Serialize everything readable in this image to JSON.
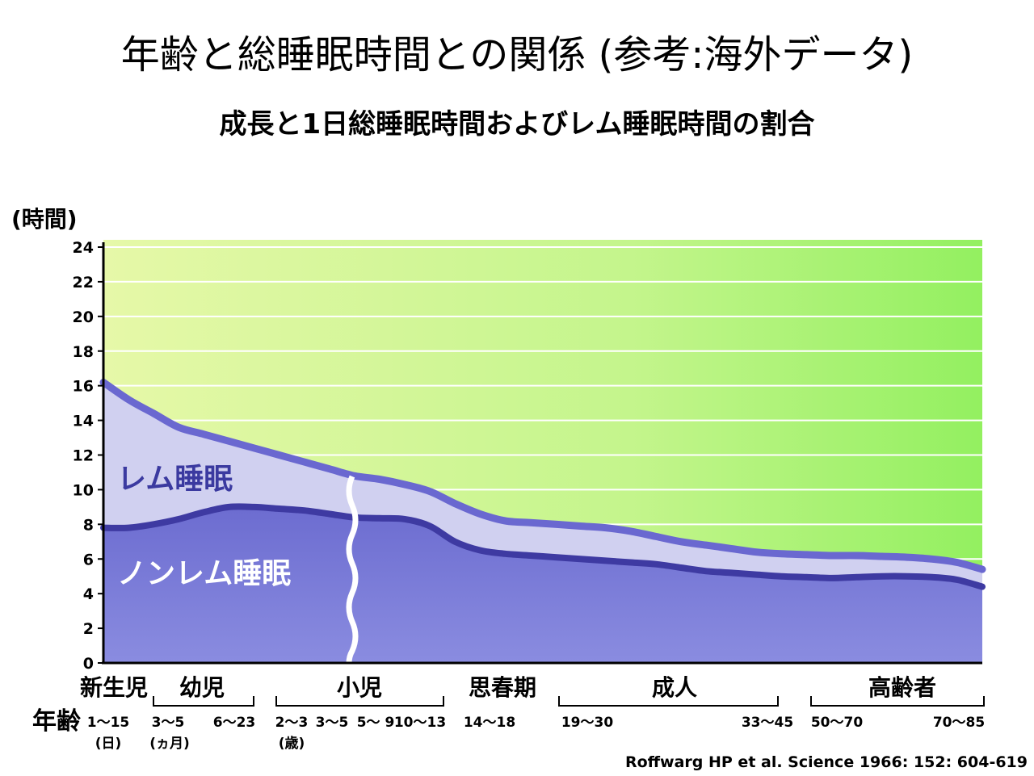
{
  "title": "年齢と総睡眠時間との関係 (参考:海外データ)",
  "subtitle": "成長と1日総睡眠時間およびレム睡眠時間の割合",
  "source": "Roffwarg HP et al. Science 1966: 152: 604-619",
  "colors": {
    "background_light": "#e6f8a8",
    "background_dark": "#93f060",
    "rem_area": "#d0d0f0",
    "rem_line": "#6a68d0",
    "nrem_area": "#7f80d8",
    "nrem_line": "#3e3aa2"
  },
  "chart_data": {
    "type": "area",
    "title": "成長と1日総睡眠時間およびレム睡眠時間の割合",
    "ylabel": "(時間)",
    "xlabel": "年齢",
    "ylim": [
      0,
      24
    ],
    "yticks": [
      0,
      2,
      4,
      6,
      8,
      10,
      12,
      14,
      16,
      18,
      20,
      22,
      24
    ],
    "grid": true,
    "stages": [
      "新生児",
      "幼児",
      "小児",
      "思春期",
      "成人",
      "高齢者"
    ],
    "age_labels": [
      {
        "text": "1〜15",
        "unit": "(日)"
      },
      {
        "text": "3〜5",
        "unit": "(ヵ月)"
      },
      {
        "text": "6〜23",
        "unit": ""
      },
      {
        "text": "2〜3",
        "unit": "(歳)"
      },
      {
        "text": "3〜5",
        "unit": ""
      },
      {
        "text": "5〜 9",
        "unit": ""
      },
      {
        "text": "10〜13",
        "unit": ""
      },
      {
        "text": "14〜18",
        "unit": ""
      },
      {
        "text": "19〜30",
        "unit": ""
      },
      {
        "text": "33〜45",
        "unit": ""
      },
      {
        "text": "50〜70",
        "unit": ""
      },
      {
        "text": "70〜85",
        "unit": ""
      }
    ],
    "series": [
      {
        "name": "レム睡眠",
        "values": [
          16.2,
          15.2,
          14.4,
          13.6,
          13.2,
          12.8,
          12.4,
          12.0,
          11.6,
          11.2,
          10.8,
          10.6,
          10.3,
          9.9,
          9.2,
          8.6,
          8.2,
          8.1,
          8.0,
          7.9,
          7.8,
          7.6,
          7.3,
          7.0,
          6.8,
          6.6,
          6.4,
          6.3,
          6.25,
          6.2,
          6.2,
          6.15,
          6.1,
          6.0,
          5.8,
          5.4
        ]
      },
      {
        "name": "ノンレム睡眠",
        "values": [
          7.8,
          7.8,
          8.0,
          8.3,
          8.7,
          9.0,
          9.0,
          8.9,
          8.8,
          8.6,
          8.4,
          8.35,
          8.3,
          7.9,
          7.0,
          6.5,
          6.3,
          6.2,
          6.1,
          6.0,
          5.9,
          5.8,
          5.7,
          5.5,
          5.3,
          5.2,
          5.1,
          5.0,
          4.95,
          4.9,
          4.95,
          5.0,
          5.0,
          4.95,
          4.8,
          4.4
        ]
      }
    ]
  }
}
